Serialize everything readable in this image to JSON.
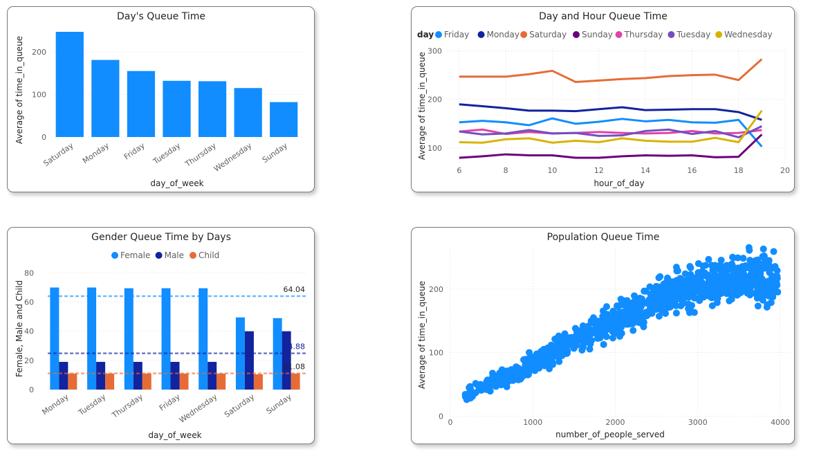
{
  "charts": [
    {
      "id": "days",
      "type": "bar",
      "title": "Day's Queue Time",
      "xlabel": "day_of_week",
      "ylabel": "Average of time_in_queue",
      "categories": [
        "Saturday",
        "Monday",
        "Friday",
        "Tuesday",
        "Thursday",
        "Wednesday",
        "Sunday"
      ],
      "values": [
        247,
        181,
        155,
        132,
        131,
        115,
        82
      ],
      "ylim": [
        0,
        260
      ],
      "yticks": [
        0,
        100,
        200
      ],
      "color": "#118dff"
    },
    {
      "id": "hours",
      "type": "line",
      "title": "Day and Hour Queue Time",
      "legend_title": "day",
      "xlabel": "hour_of_day",
      "ylabel": "Average of time_in_queue",
      "x": [
        6,
        7,
        8,
        9,
        10,
        11,
        12,
        13,
        14,
        15,
        16,
        17,
        18,
        19
      ],
      "xlim": [
        5.5,
        20
      ],
      "xticks": [
        6,
        8,
        10,
        12,
        14,
        16,
        18,
        20
      ],
      "ylim": [
        70,
        305
      ],
      "yticks": [
        100,
        200,
        300
      ],
      "series": [
        {
          "name": "Friday",
          "color": "#118dff",
          "values": [
            153,
            156,
            153,
            147,
            161,
            150,
            154,
            160,
            155,
            158,
            153,
            152,
            158,
            103
          ]
        },
        {
          "name": "Monday",
          "color": "#12239e",
          "values": [
            190,
            186,
            182,
            177,
            177,
            176,
            180,
            184,
            178,
            179,
            180,
            180,
            174,
            158
          ]
        },
        {
          "name": "Saturday",
          "color": "#e66c37",
          "values": [
            247,
            247,
            247,
            252,
            259,
            236,
            239,
            242,
            244,
            248,
            250,
            251,
            240,
            283
          ]
        },
        {
          "name": "Sunday",
          "color": "#6b007b",
          "values": [
            80,
            83,
            87,
            85,
            85,
            80,
            80,
            83,
            85,
            84,
            85,
            81,
            82,
            128
          ]
        },
        {
          "name": "Thursday",
          "color": "#e044a7",
          "values": [
            134,
            138,
            129,
            133,
            130,
            131,
            133,
            131,
            130,
            131,
            135,
            130,
            131,
            137
          ]
        },
        {
          "name": "Tuesday",
          "color": "#744ec2",
          "values": [
            134,
            128,
            130,
            137,
            130,
            131,
            125,
            126,
            135,
            138,
            129,
            135,
            122,
            145
          ]
        },
        {
          "name": "Wednesday",
          "color": "#d9b300",
          "values": [
            112,
            111,
            118,
            120,
            111,
            115,
            112,
            120,
            115,
            113,
            113,
            121,
            112,
            177
          ]
        }
      ]
    },
    {
      "id": "gender",
      "type": "bar",
      "title": "Gender Queue Time by Days",
      "xlabel": "day_of_week",
      "ylabel": "Female, Male and Child",
      "categories": [
        "Monday",
        "Tuesday",
        "Thursday",
        "Friday",
        "Wednesday",
        "Saturday",
        "Sunday"
      ],
      "ylim": [
        0,
        84
      ],
      "yticks": [
        0,
        20,
        40,
        60,
        80
      ],
      "series": [
        {
          "name": "Female",
          "color": "#118dff",
          "values": [
            70,
            70,
            69.5,
            69.5,
            69.5,
            49.5,
            49
          ]
        },
        {
          "name": "Male",
          "color": "#12239e",
          "values": [
            19,
            19,
            19,
            19,
            19,
            40,
            40
          ]
        },
        {
          "name": "Child",
          "color": "#e66c37",
          "values": [
            11,
            11,
            11,
            11,
            11,
            10.5,
            11
          ]
        }
      ],
      "reference_lines": [
        {
          "value": 64.04,
          "label": "64.04",
          "color": "#118dff",
          "label_color": "#252423"
        },
        {
          "value": 24.88,
          "label": "24.88",
          "color": "#12239e",
          "label_color": "#12239e"
        },
        {
          "value": 11.08,
          "label": "11.08",
          "color": "#e66c37",
          "label_color": "#252423"
        }
      ]
    },
    {
      "id": "population",
      "type": "scatter",
      "title": "Population Queue Time",
      "xlabel": "number_of_people_served",
      "ylabel": "Average of time_in_queue",
      "xlim": [
        0,
        4100
      ],
      "xticks": [
        0,
        1000,
        2000,
        3000,
        4000
      ],
      "ylim": [
        -5,
        262
      ],
      "yticks": [
        0,
        100,
        200
      ],
      "color": "#118dff",
      "trend": {
        "x": [
          200,
          800,
          1400,
          2000,
          2600,
          3200,
          3700,
          3950
        ],
        "y": [
          35,
          70,
          110,
          150,
          190,
          210,
          220,
          215
        ]
      },
      "point_count": 1000
    }
  ]
}
